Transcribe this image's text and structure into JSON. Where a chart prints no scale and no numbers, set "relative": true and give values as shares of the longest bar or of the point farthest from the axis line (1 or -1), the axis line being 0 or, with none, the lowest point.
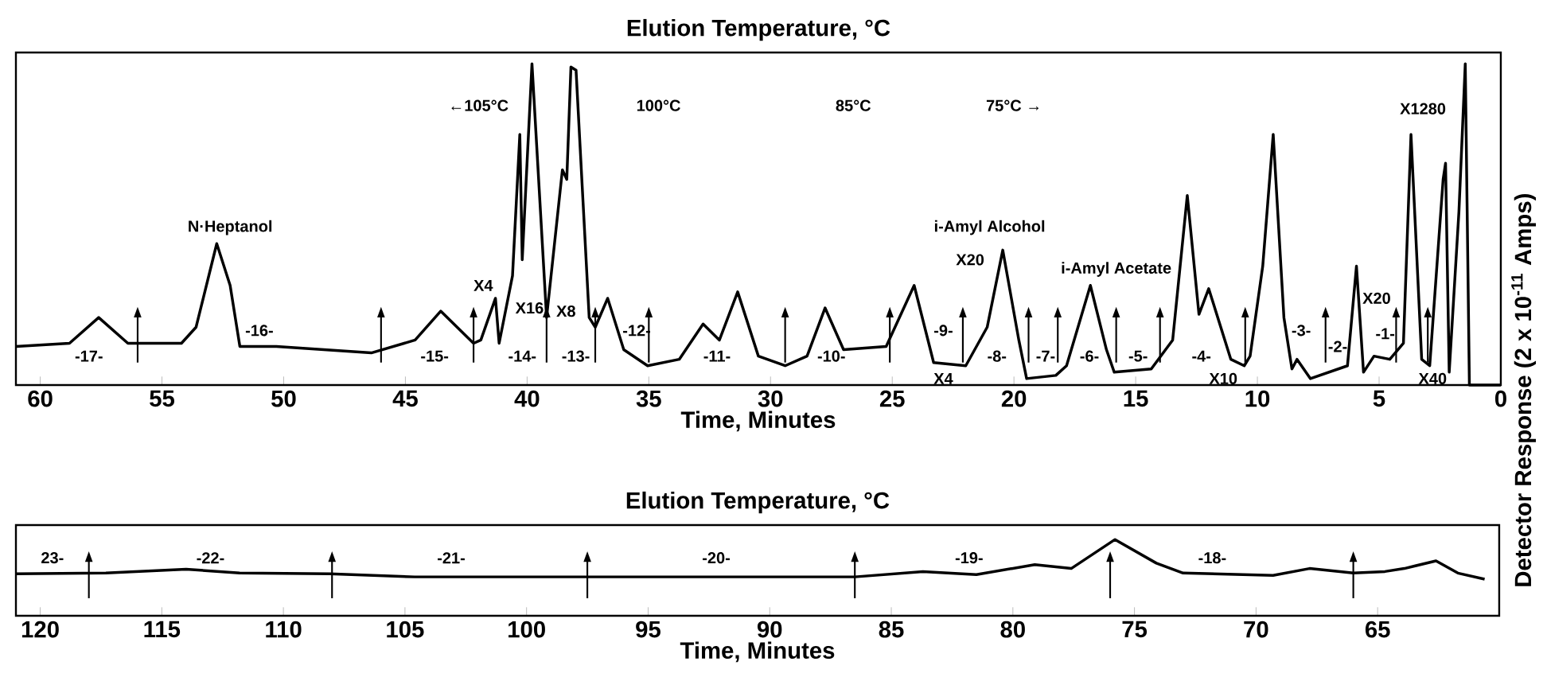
{
  "chart_data": [
    {
      "type": "line",
      "title": "Elution Temperature, °C",
      "xlabel": "Time, Minutes",
      "ylabel": "Detector Response (2 x 10$^{-11}$ Amps)",
      "relative": true,
      "color": "#000000",
      "xlim": [
        61,
        0
      ],
      "xticks": [
        60,
        55,
        50,
        45,
        40,
        35,
        30,
        25,
        20,
        15,
        10,
        5,
        0
      ],
      "x": [
        61,
        58.8,
        57.6,
        56.4,
        54.2,
        53.6,
        52.75,
        52.2,
        51.8,
        50.3,
        46.4,
        44.6,
        43.55,
        42.2,
        41.9,
        41.3,
        41.15,
        40.6,
        40.3,
        40.2,
        39.8,
        39.2,
        38.55,
        38.37,
        38.2,
        37.99,
        37.45,
        37.2,
        36.69,
        36.03,
        35.05,
        33.75,
        32.77,
        32.1,
        31.35,
        30.5,
        29.4,
        28.5,
        27.76,
        27.0,
        25.25,
        24.1,
        23.3,
        21.98,
        21.1,
        20.46,
        19.8,
        19.48,
        18.28,
        17.84,
        16.86,
        16.2,
        15.88,
        14.36,
        13.48,
        12.88,
        12.4,
        12.0,
        11.09,
        10.54,
        10.3,
        9.78,
        9.35,
        8.91,
        8.58,
        8.37,
        7.82,
        6.3,
        5.93,
        5.64,
        5.21,
        4.56,
        4.0,
        3.69,
        3.25,
        2.92,
        2.37,
        2.27,
        2.12,
        1.72,
        1.46,
        1.29,
        0
      ],
      "values": [
        0.12,
        0.13,
        0.21,
        0.13,
        0.13,
        0.18,
        0.44,
        0.31,
        0.12,
        0.12,
        0.1,
        0.14,
        0.23,
        0.13,
        0.14,
        0.27,
        0.13,
        0.34,
        0.78,
        0.39,
        1.0,
        0.21,
        0.67,
        0.64,
        0.99,
        0.98,
        0.21,
        0.18,
        0.27,
        0.11,
        0.06,
        0.08,
        0.19,
        0.14,
        0.29,
        0.09,
        0.06,
        0.09,
        0.24,
        0.11,
        0.12,
        0.31,
        0.07,
        0.06,
        0.18,
        0.42,
        0.14,
        0.02,
        0.03,
        0.06,
        0.31,
        0.11,
        0.04,
        0.05,
        0.14,
        0.59,
        0.22,
        0.3,
        0.08,
        0.06,
        0.09,
        0.37,
        0.78,
        0.21,
        0.05,
        0.08,
        0.02,
        0.06,
        0.37,
        0.04,
        0.09,
        0.08,
        0.13,
        0.78,
        0.08,
        0.06,
        0.64,
        0.69,
        0.04,
        0.54,
        1.0,
        0,
        0
      ],
      "ref_lines": [
        {
          "axis": "x",
          "value": 56
        },
        {
          "axis": "x",
          "value": 46
        },
        {
          "axis": "x",
          "value": 42.2
        },
        {
          "axis": "x",
          "value": 39.2
        },
        {
          "axis": "x",
          "value": 37.2
        },
        {
          "axis": "x",
          "value": 35
        },
        {
          "axis": "x",
          "value": 29.4
        },
        {
          "axis": "x",
          "value": 25.1
        },
        {
          "axis": "x",
          "value": 22.1
        },
        {
          "axis": "x",
          "value": 19.4
        },
        {
          "axis": "x",
          "value": 18.2
        },
        {
          "axis": "x",
          "value": 15.8
        },
        {
          "axis": "x",
          "value": 14
        },
        {
          "axis": "x",
          "value": 10.5
        },
        {
          "axis": "x",
          "value": 7.2
        },
        {
          "axis": "x",
          "value": 4.3
        },
        {
          "axis": "x",
          "value": 3
        }
      ],
      "annotations": [
        "-17-",
        "N·Heptanol",
        "-16-",
        "-15-",
        "X4",
        "X16",
        "-14-",
        "←105°C",
        "X8",
        "-13-",
        "-12-",
        "100°C",
        "-11-",
        "-10-",
        "85°C",
        "75°C →",
        "-9-",
        "X4",
        "i-Amyl Alcohol",
        "X20",
        "-8-",
        "-7-",
        "i-Amyl Acetate",
        "-6-",
        "-5-",
        "-4-",
        "X10",
        "-3-",
        "-2-",
        "X20",
        "-1-",
        "X40",
        "X1280"
      ]
    },
    {
      "type": "line",
      "title": "Elution Temperature, °C",
      "xlabel": "Time, Minutes",
      "relative": true,
      "color": "#000000",
      "xlim": [
        121,
        60
      ],
      "xticks": [
        120,
        115,
        110,
        105,
        100,
        95,
        90,
        85,
        80,
        75,
        70,
        65
      ],
      "x": [
        121,
        117.3,
        114.0,
        111.8,
        108.1,
        104.6,
        88.9,
        86.5,
        83.7,
        81.5,
        79.1,
        77.6,
        75.8,
        74.1,
        73.0,
        69.3,
        67.8,
        66.0,
        64.7,
        63.9,
        62.6,
        61.7,
        60.6
      ],
      "values": [
        0.55,
        0.56,
        0.61,
        0.56,
        0.55,
        0.51,
        0.51,
        0.51,
        0.58,
        0.54,
        0.67,
        0.62,
        1.0,
        0.69,
        0.56,
        0.53,
        0.62,
        0.56,
        0.58,
        0.62,
        0.72,
        0.56,
        0.48
      ],
      "ref_lines": [
        {
          "axis": "x",
          "value": 118
        },
        {
          "axis": "x",
          "value": 108
        },
        {
          "axis": "x",
          "value": 97.5
        },
        {
          "axis": "x",
          "value": 86.5
        },
        {
          "axis": "x",
          "value": 76
        },
        {
          "axis": "x",
          "value": 66
        }
      ],
      "annotations": [
        "23-",
        "-22-",
        "-21-",
        "-20-",
        "-19-",
        "-18-"
      ]
    }
  ]
}
